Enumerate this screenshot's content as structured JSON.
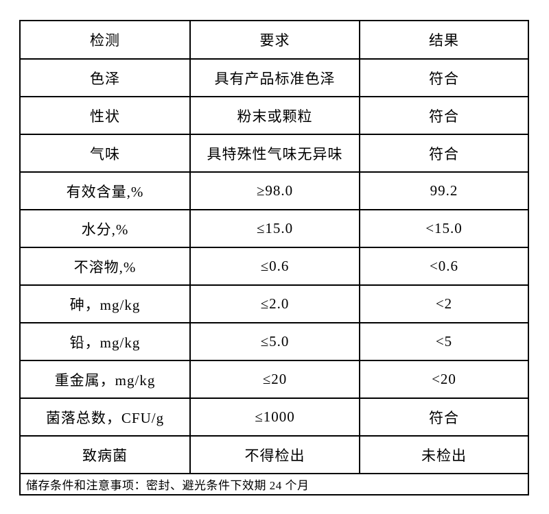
{
  "table": {
    "header": {
      "test": "检测",
      "requirement": "要求",
      "result": "结果"
    },
    "rows": [
      {
        "test": "色泽",
        "requirement": "具有产品标准色泽",
        "result": "符合"
      },
      {
        "test": "性状",
        "requirement": "粉末或颗粒",
        "result": "符合"
      },
      {
        "test": "气味",
        "requirement": "具特殊性气味无异味",
        "result": "符合"
      },
      {
        "test": "有效含量,%",
        "requirement": "≥98.0",
        "result": "99.2"
      },
      {
        "test": "水分,%",
        "requirement": "≤15.0",
        "result": "<15.0"
      },
      {
        "test": "不溶物,%",
        "requirement": "≤0.6",
        "result": "<0.6"
      },
      {
        "test": "砷，mg/kg",
        "requirement": "≤2.0",
        "result": "<2"
      },
      {
        "test": "铅，mg/kg",
        "requirement": "≤5.0",
        "result": "<5"
      },
      {
        "test": "重金属，mg/kg",
        "requirement": "≤20",
        "result": "<20"
      },
      {
        "test": "菌落总数，CFU/g",
        "requirement": "≤1000",
        "result": "符合"
      },
      {
        "test": "致病菌",
        "requirement": "不得检出",
        "result": "未检出"
      }
    ],
    "footer": "储存条件和注意事项：密封、避光条件下效期 24 个月"
  }
}
